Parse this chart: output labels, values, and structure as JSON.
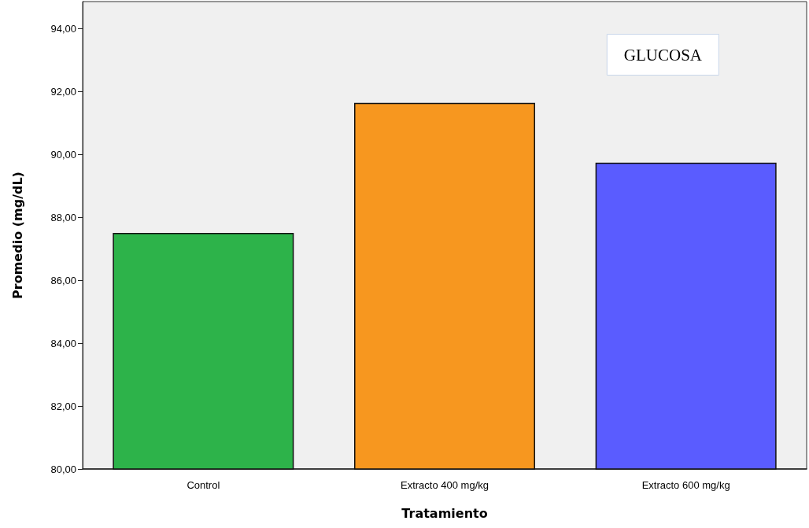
{
  "chart_data": {
    "type": "bar",
    "title": "GLUCOSA",
    "xlabel": "Tratamiento",
    "ylabel": "Promedio (mg/dL)",
    "categories": [
      "Control",
      "Extracto 400 mg/kg",
      "Extracto 600 mg/kg"
    ],
    "values": [
      87.5,
      91.63,
      89.73
    ],
    "colors": [
      "#2db34a",
      "#f7971f",
      "#5a5cff"
    ],
    "ylim": [
      80,
      94.85
    ],
    "yticks": [
      {
        "value": 80,
        "label": "80,00"
      },
      {
        "value": 82,
        "label": "82,00"
      },
      {
        "value": 84,
        "label": "84,00"
      },
      {
        "value": 86,
        "label": "86,00"
      },
      {
        "value": 88,
        "label": "88,00"
      },
      {
        "value": 90,
        "label": "90,00"
      },
      {
        "value": 92,
        "label": "92,00"
      },
      {
        "value": 94,
        "label": "94,00"
      }
    ],
    "grid": false
  }
}
